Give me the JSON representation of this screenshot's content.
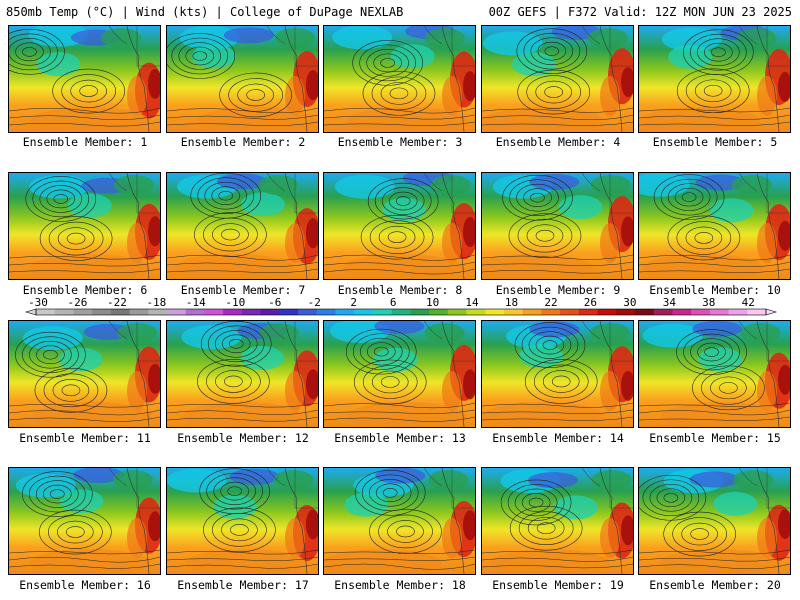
{
  "header": {
    "left": "850mb Temp (°C) | Wind (kts) | College of DuPage NEXLAB",
    "right": "00Z GEFS | F372 Valid: 12Z MON JUN 23 2025"
  },
  "panel_label_prefix": "Ensemble Member: ",
  "members": [
    1,
    2,
    3,
    4,
    5,
    6,
    7,
    8,
    9,
    10,
    11,
    12,
    13,
    14,
    15,
    16,
    17,
    18,
    19,
    20
  ],
  "colorbar": {
    "ticks": [
      "-30",
      "-26",
      "-22",
      "-18",
      "-14",
      "-10",
      "-6",
      "-2",
      "2",
      "6",
      "10",
      "14",
      "18",
      "22",
      "26",
      "30",
      "34",
      "38",
      "42"
    ],
    "colors": [
      "#c8c8c8",
      "#b4b4b4",
      "#a0a0a0",
      "#8c8c8c",
      "#787878",
      "#9a9a9a",
      "#b4b4b4",
      "#c8a0dc",
      "#b46ed2",
      "#d250dc",
      "#aa28c8",
      "#7828b4",
      "#5a1eaa",
      "#3232c8",
      "#3c5adc",
      "#2882e6",
      "#1eaaf0",
      "#14c8e6",
      "#1ed2b4",
      "#1eb482",
      "#28a050",
      "#50b428",
      "#8cc81e",
      "#c8dc1e",
      "#f0e628",
      "#fac828",
      "#faa01e",
      "#f07814",
      "#e65014",
      "#dc2814",
      "#c80a0a",
      "#a00a0a",
      "#780a14",
      "#a01e5a",
      "#c8288c",
      "#dc50b4",
      "#e678d2",
      "#f0a0e6",
      "#f8c8f0"
    ]
  }
}
